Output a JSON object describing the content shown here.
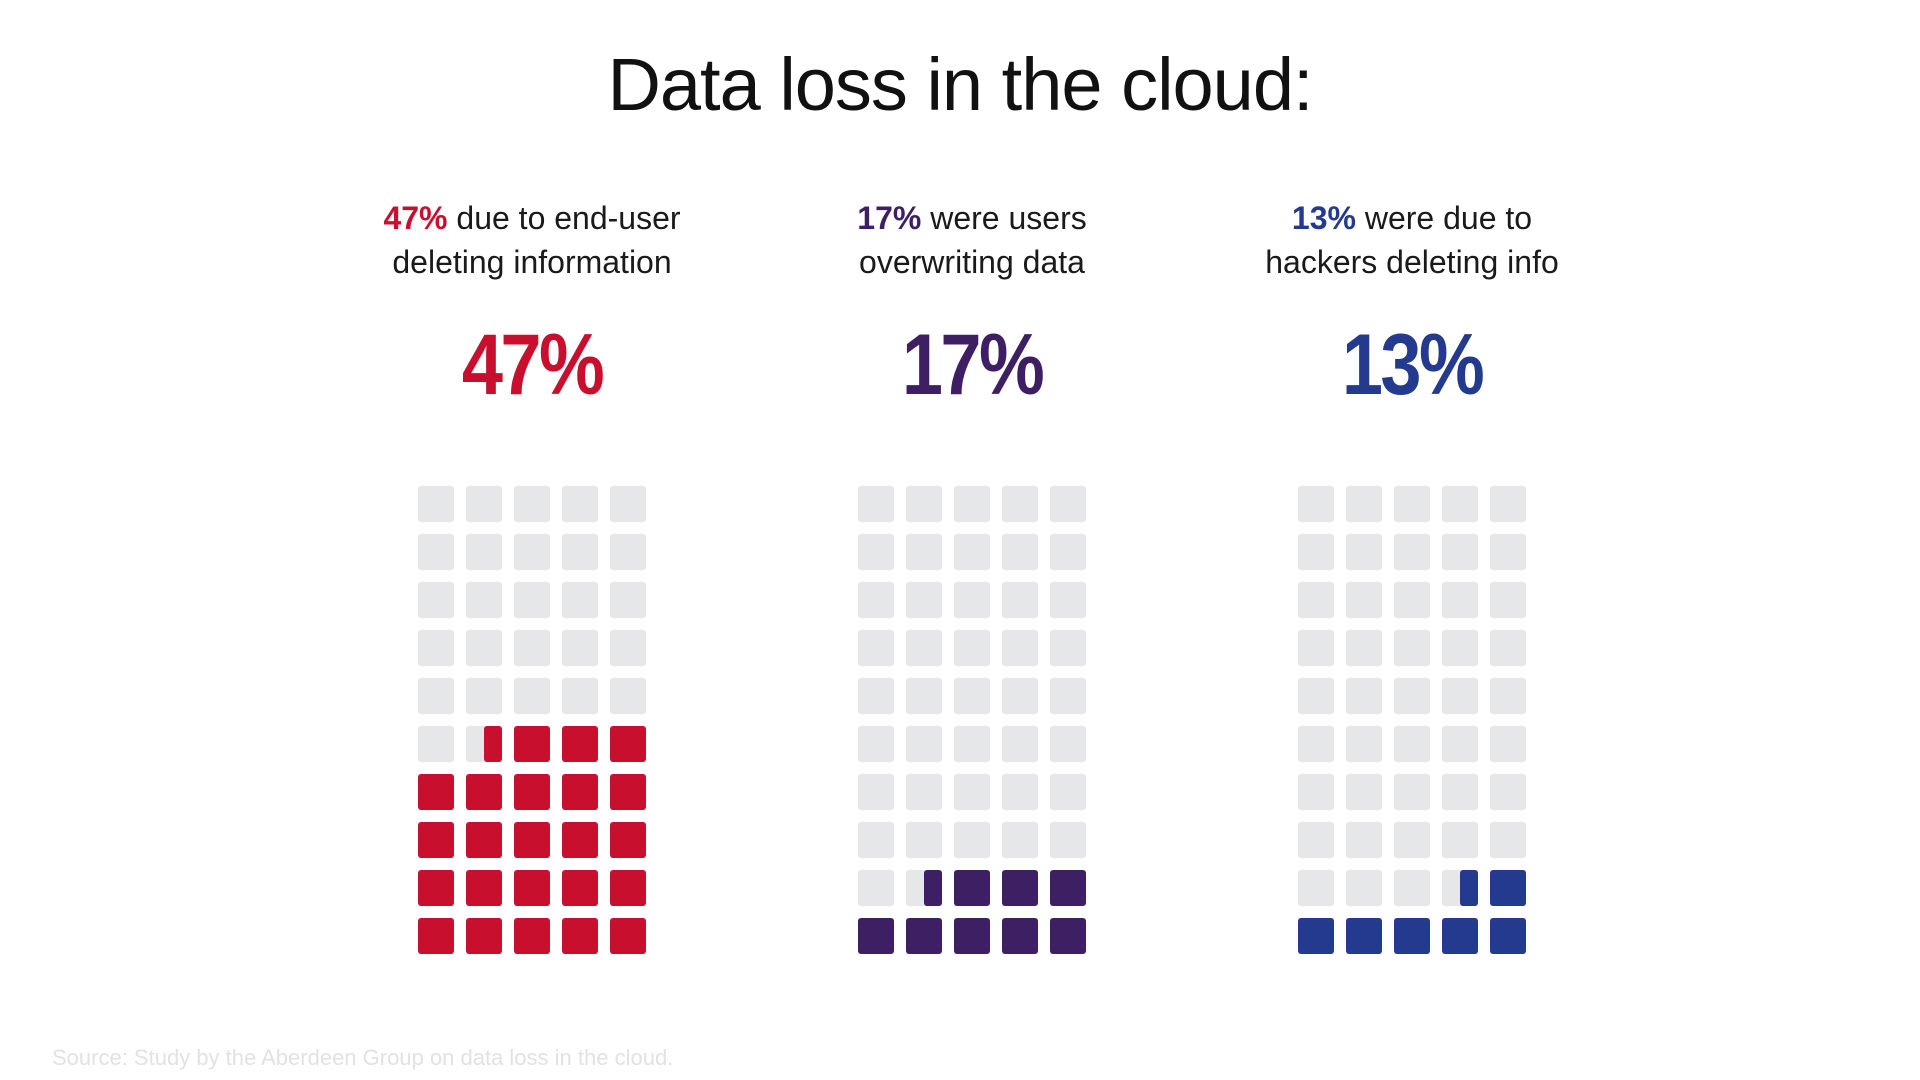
{
  "title": "Data loss in the cloud:",
  "source": "Source: Study by the Aberdeen Group on data loss in the cloud.",
  "colors": {
    "empty": "#e6e7e8",
    "red": "#c8102e",
    "purple": "#3f1f63",
    "blue": "#233a8e"
  },
  "chart_data": [
    {
      "type": "waffle",
      "caption_pct": "47%",
      "caption_text_line1": " due to end-user",
      "caption_text_line2": "deleting information",
      "big_label": "47%",
      "value": 47,
      "total": 100,
      "color": "#c8102e"
    },
    {
      "type": "waffle",
      "caption_pct": "17%",
      "caption_text_line1": " were users",
      "caption_text_line2": "overwriting data",
      "big_label": "17%",
      "value": 17,
      "total": 100,
      "color": "#3f1f63"
    },
    {
      "type": "waffle",
      "caption_pct": "13%",
      "caption_text_line1": " were due to",
      "caption_text_line2": "hackers deleting info",
      "big_label": "13%",
      "value": 13,
      "total": 100,
      "color": "#233a8e"
    }
  ]
}
